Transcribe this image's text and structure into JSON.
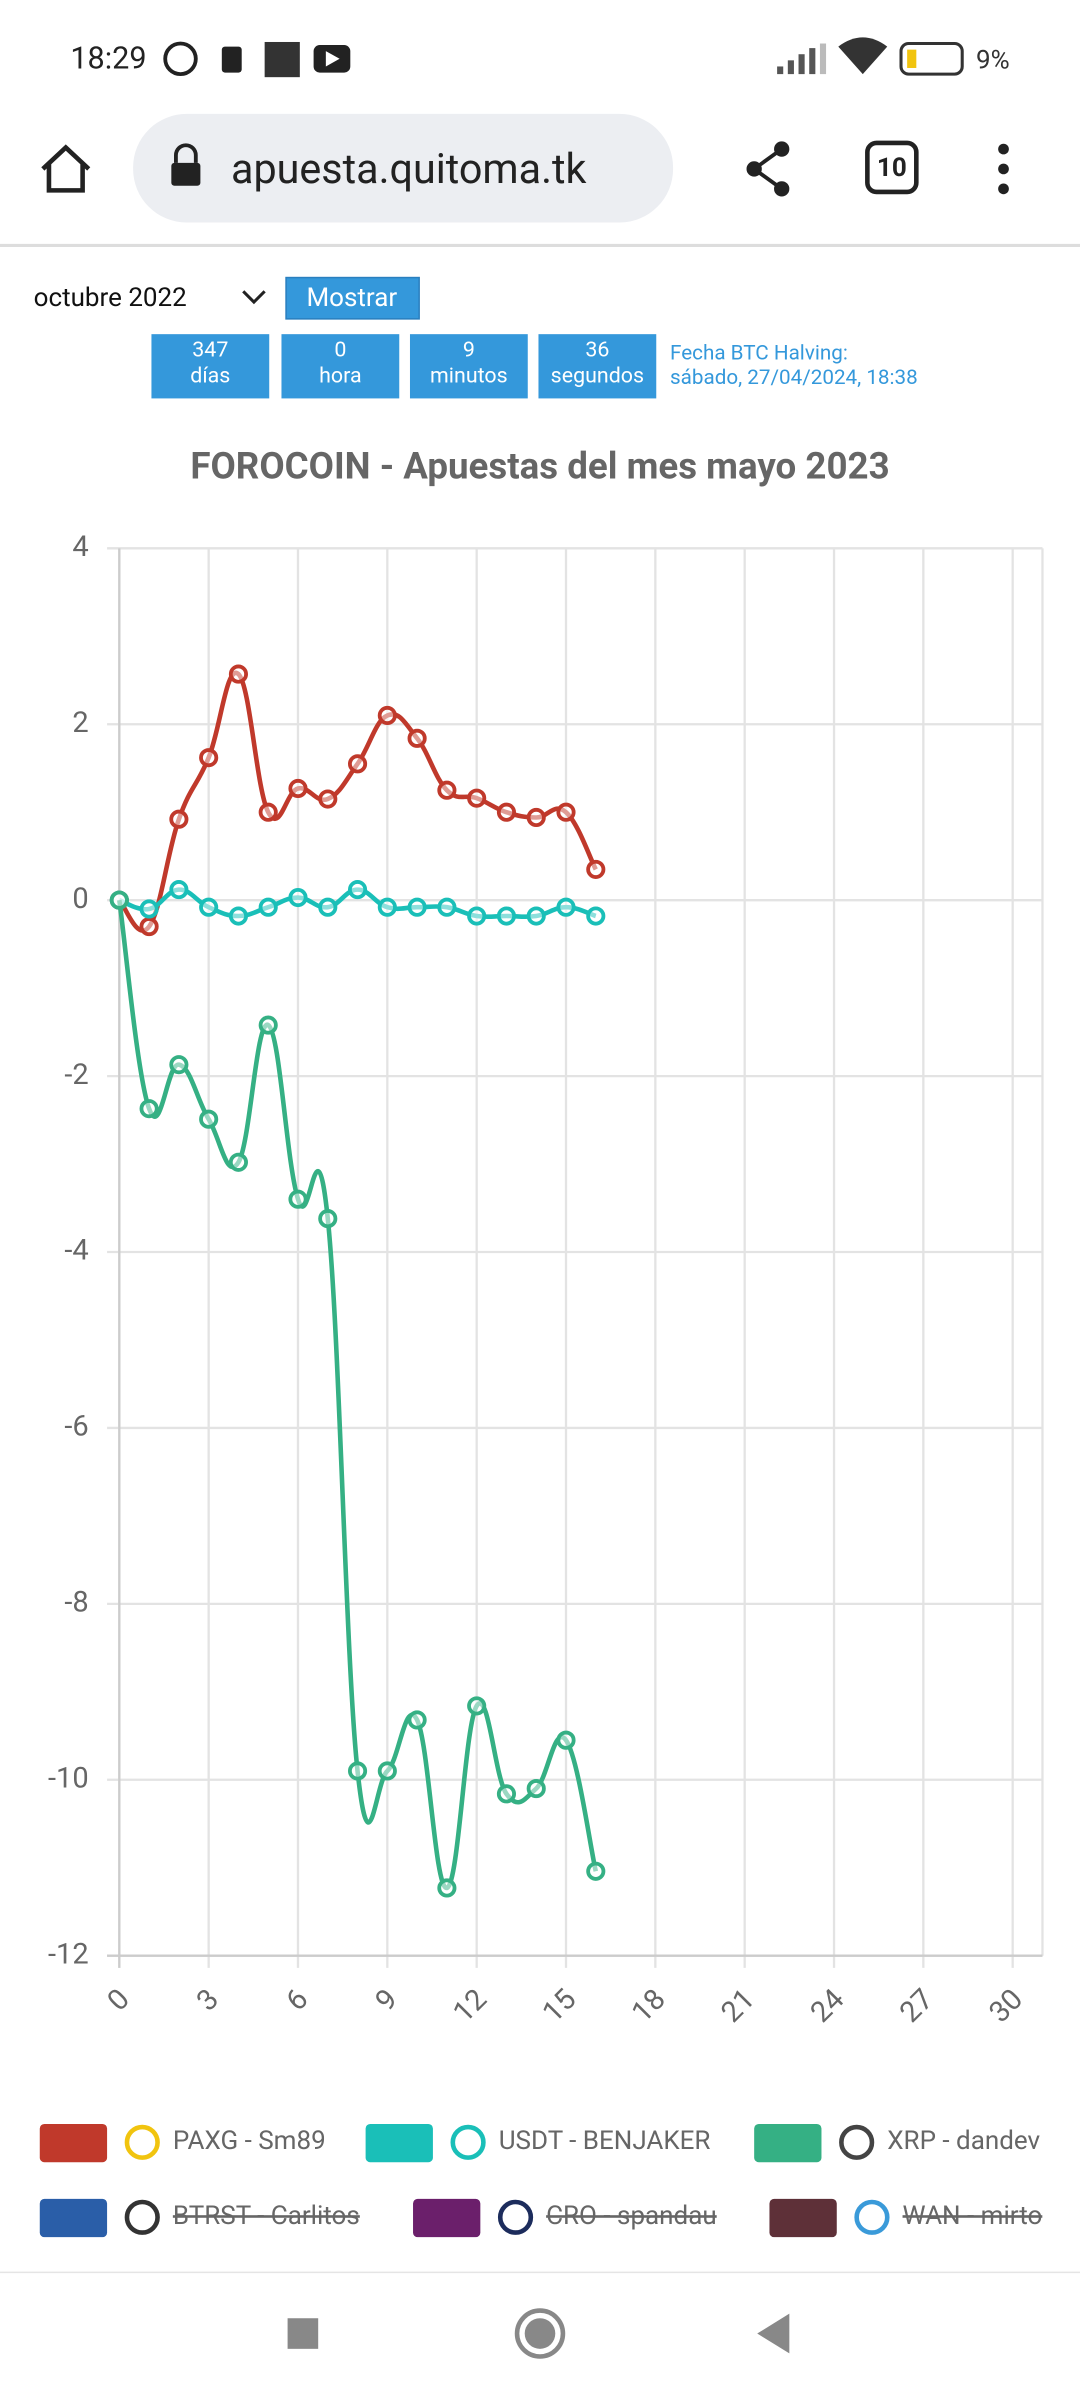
{
  "status": {
    "time": "18:29",
    "battery": "9%"
  },
  "browser": {
    "url": "apuesta.quitoma.tk",
    "tabs": "10"
  },
  "controls": {
    "month": "octubre 2022",
    "button": "Mostrar"
  },
  "countdown": [
    {
      "value": 347,
      "unit": "días"
    },
    {
      "value": 0,
      "unit": "hora"
    },
    {
      "value": 9,
      "unit": "minutos"
    },
    {
      "value": 36,
      "unit": "segundos"
    }
  ],
  "halving": {
    "label": "Fecha BTC Halving:",
    "date": "sábado, 27/04/2024, 18:38"
  },
  "chart_data": {
    "type": "line",
    "title": "FOROCOIN - Apuestas del mes mayo 2023",
    "x": [
      0,
      1,
      2,
      3,
      4,
      5,
      6,
      7,
      8,
      9,
      10,
      11,
      12,
      13,
      14,
      15,
      16
    ],
    "xlim": [
      0,
      31
    ],
    "xticks": [
      0,
      3,
      6,
      9,
      12,
      15,
      18,
      21,
      24,
      27,
      30
    ],
    "ylim": [
      -12,
      4
    ],
    "yticks": [
      -12,
      -10,
      -8,
      -6,
      -4,
      -2,
      0,
      2,
      4
    ],
    "grid": true,
    "legend": "bottom",
    "series": [
      {
        "name": "PAXG - Sm89",
        "color": "#c0392b",
        "values": [
          0,
          -0.3,
          0.92,
          1.62,
          2.57,
          1.0,
          1.27,
          1.15,
          1.55,
          2.1,
          1.84,
          1.25,
          1.16,
          1.0,
          0.94,
          1.0,
          0.35
        ]
      },
      {
        "name": "USDT - BENJAKER",
        "color": "#1abfb8",
        "values": [
          0,
          -0.1,
          0.12,
          -0.08,
          -0.18,
          -0.08,
          0.03,
          -0.08,
          0.12,
          -0.08,
          -0.08,
          -0.08,
          -0.18,
          -0.18,
          -0.18,
          -0.08,
          -0.18
        ]
      },
      {
        "name": "XRP - dandev",
        "color": "#35b084",
        "values": [
          0,
          -2.37,
          -1.87,
          -2.49,
          -2.98,
          -1.42,
          -3.4,
          -3.62,
          -9.9,
          -9.9,
          -9.32,
          -11.23,
          -9.16,
          -10.16,
          -10.1,
          -9.55,
          -11.04
        ]
      },
      {
        "name": "BTRST - Carlitos",
        "color": "#2a5ea8",
        "hidden": true
      },
      {
        "name": "CRO - spandau",
        "color": "#6b1f6b",
        "hidden": true
      },
      {
        "name": "WAN - mirto",
        "color": "#5e3038",
        "hidden": true
      }
    ]
  }
}
